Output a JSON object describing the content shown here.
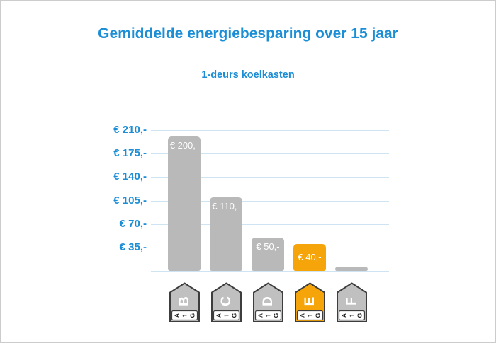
{
  "chart_data": {
    "type": "bar",
    "title": "Gemiddelde energiebesparing over 15 jaar",
    "subtitle": "1-deurs koelkasten",
    "categories": [
      "B",
      "C",
      "D",
      "E",
      "F"
    ],
    "values": [
      200,
      110,
      50,
      40,
      6
    ],
    "bar_labels": [
      "€ 200,-",
      "€ 110,-",
      "€ 50,-",
      "€ 40,-",
      ""
    ],
    "bar_colors": [
      "#b9b9b9",
      "#b9b9b9",
      "#b9b9b9",
      "#f5a50a",
      "#b9b9b9"
    ],
    "highlight_index": 3,
    "highlight_color": "#f5a50a",
    "bar_default_color": "#b9b9b9",
    "xlabel": "",
    "ylabel": "",
    "ylim": [
      0,
      235
    ],
    "yticks": [
      35,
      70,
      105,
      140,
      175,
      210
    ],
    "ytick_labels": [
      "€ 35,-",
      "€ 70,-",
      "€ 105,-",
      "€ 140,-",
      "€ 175,-",
      "€ 210,-"
    ],
    "grid": true,
    "gridline_values": [
      0,
      35,
      70,
      105,
      140,
      175,
      210
    ],
    "gridline_color": "#cfe4f2",
    "axis_label_color": "#1b8ed6",
    "title_color": "#1b8ed6",
    "value_label_color": "#ffffff",
    "legend": "none"
  },
  "energy_labels": {
    "scale_from": "A",
    "scale_arrow": "←",
    "scale_to": "G",
    "border_color": "#3d3d3d",
    "strip_fill": "#ffffff",
    "strip_text_color": "#222222",
    "letter_color": "#ffffff",
    "items": [
      {
        "letter": "B",
        "fill": "#c0c0c0"
      },
      {
        "letter": "C",
        "fill": "#c0c0c0"
      },
      {
        "letter": "D",
        "fill": "#c0c0c0"
      },
      {
        "letter": "E",
        "fill": "#f5a50a"
      },
      {
        "letter": "F",
        "fill": "#c0c0c0"
      }
    ]
  }
}
